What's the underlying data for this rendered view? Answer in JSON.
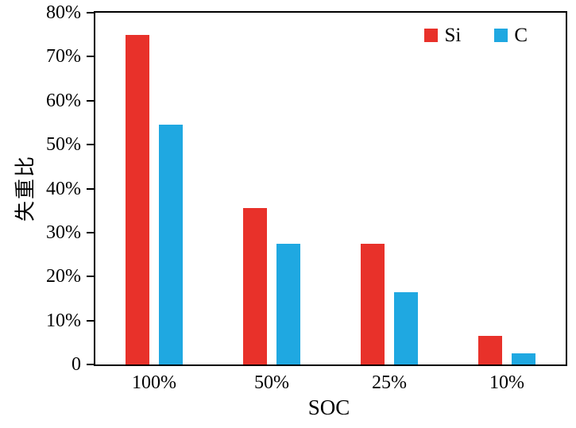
{
  "chart_data": {
    "type": "bar",
    "title": "",
    "xlabel": "SOC",
    "ylabel": "失重比",
    "categories": [
      "100%",
      "50%",
      "25%",
      "10%"
    ],
    "series": [
      {
        "name": "Si",
        "color": "#e8312a",
        "values": [
          75,
          35.5,
          27.5,
          6.5
        ]
      },
      {
        "name": "C",
        "color": "#1fa8e1",
        "values": [
          54.5,
          27.5,
          16.5,
          2.5
        ]
      }
    ],
    "ylim": [
      0,
      80
    ],
    "ytick_step": 10,
    "ytick_labels": [
      "0",
      "10%",
      "20%",
      "30%",
      "40%",
      "50%",
      "60%",
      "70%",
      "80%"
    ],
    "legend_position": "top-right",
    "grid": false,
    "axis_color": "#000000",
    "background_color": "#ffffff"
  }
}
